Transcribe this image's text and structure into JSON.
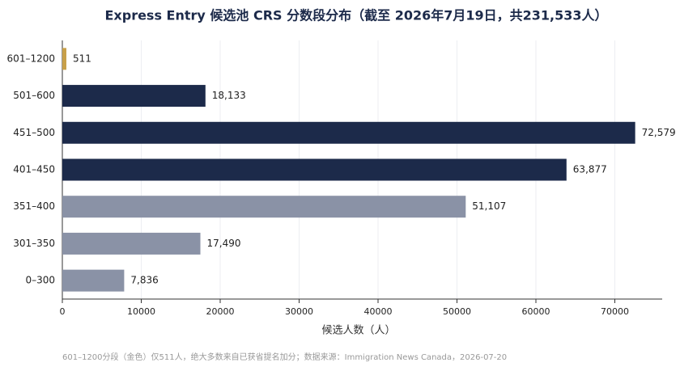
{
  "chart_data": {
    "type": "barh",
    "title": "Express Entry 候选池 CRS 分数段分布（截至 2026年7月19日，共231,533人）",
    "categories": [
      "601–1200",
      "501–600",
      "451–500",
      "401–450",
      "351–400",
      "301–350",
      "0–300"
    ],
    "values": [
      511,
      18133,
      72579,
      63877,
      51107,
      17490,
      7836
    ],
    "value_labels": [
      "511",
      "18,133",
      "72,579",
      "63,877",
      "51,107",
      "17,490",
      "7,836"
    ],
    "colors": [
      "#c8a04a",
      "#1c2a4a",
      "#1c2a4a",
      "#1c2a4a",
      "#8a92a6",
      "#8a92a6",
      "#8a92a6"
    ],
    "xlabel": "候选人数（人）",
    "xlim": [
      0,
      76000
    ],
    "xticks": [
      0,
      10000,
      20000,
      30000,
      40000,
      50000,
      60000,
      70000
    ],
    "grid": true,
    "note": "601–1200分段（金色）仅511人，绝大多数来自已获省提名加分；数据来源：Immigration News Canada，2026-07-20"
  }
}
